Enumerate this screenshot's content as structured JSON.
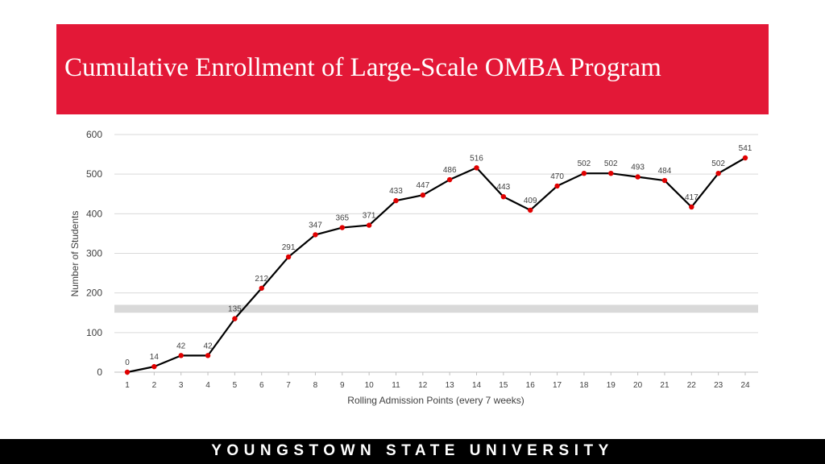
{
  "slide": {
    "title": "Cumulative Enrollment of Large-Scale OMBA Program",
    "footer": "YOUNGSTOWN STATE UNIVERSITY"
  },
  "colors": {
    "banner": "#e31837",
    "line": "#000000",
    "marker": "#e00000",
    "highlight_band": "#d9d9d9",
    "grid": "#d9d9d9"
  },
  "chart_data": {
    "type": "line",
    "title": "",
    "xlabel": "Rolling Admission Points (every 7 weeks)",
    "ylabel": "Number of Students",
    "categories": [
      "1",
      "2",
      "3",
      "4",
      "5",
      "6",
      "7",
      "8",
      "9",
      "10",
      "11",
      "12",
      "13",
      "14",
      "15",
      "16",
      "17",
      "18",
      "19",
      "20",
      "21",
      "22",
      "23",
      "24"
    ],
    "series": [
      {
        "name": "Cumulative Enrollment",
        "values": [
          0,
          14,
          42,
          42,
          135,
          212,
          291,
          347,
          365,
          371,
          433,
          447,
          486,
          516,
          443,
          409,
          470,
          502,
          502,
          493,
          484,
          417,
          502,
          541
        ],
        "labels": [
          "0",
          "14",
          "42",
          "42",
          "135",
          "212",
          "291",
          "347",
          "365",
          "371",
          "433",
          "447",
          "486",
          "516",
          "443",
          "409",
          "470",
          "502",
          "502",
          "493",
          "484",
          "417",
          "502",
          "541"
        ]
      }
    ],
    "ylim": [
      0,
      600
    ],
    "yticks": [
      0,
      100,
      200,
      300,
      400,
      500,
      600
    ],
    "ytick_labels": [
      "0",
      "100",
      "200",
      "300",
      "400",
      "500",
      "600"
    ],
    "highlight_band": [
      150,
      170
    ],
    "grid": true
  }
}
